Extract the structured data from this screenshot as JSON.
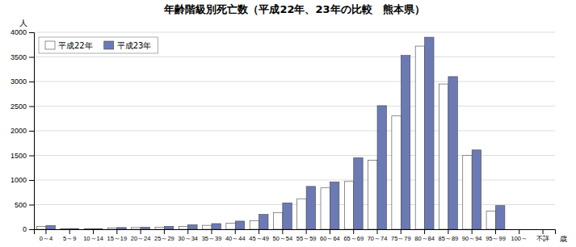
{
  "chart_data": {
    "type": "bar",
    "title": "年齢階級別死亡数（平成22年、23年の比較　熊本県）",
    "ylabel": "人",
    "xlabel": "歳",
    "categories": [
      "0～4",
      "5～9",
      "10～14",
      "15～19",
      "20～24",
      "25～29",
      "30～34",
      "35～39",
      "40～44",
      "45～49",
      "50～54",
      "55～59",
      "60～64",
      "65～69",
      "70～74",
      "75～79",
      "80～84",
      "85～89",
      "90～94",
      "95～99",
      "100～",
      "不詳"
    ],
    "series": [
      {
        "name": "平成22年",
        "color": "#ffffff",
        "values": [
          55,
          10,
          10,
          30,
          35,
          40,
          55,
          80,
          120,
          175,
          340,
          620,
          840,
          970,
          1400,
          2300,
          3720,
          2950,
          1500,
          370,
          0,
          0
        ]
      },
      {
        "name": "平成23年",
        "color": "#6b7ab5",
        "values": [
          75,
          15,
          12,
          35,
          40,
          60,
          90,
          115,
          165,
          300,
          535,
          870,
          960,
          1450,
          2510,
          3530,
          3900,
          3100,
          1610,
          480,
          0,
          0
        ]
      }
    ],
    "ylim": [
      0,
      4000
    ],
    "yticks": [
      0,
      500,
      1000,
      1500,
      2000,
      2500,
      3000,
      3500,
      4000
    ],
    "grid": true,
    "legend": "upper-left"
  }
}
